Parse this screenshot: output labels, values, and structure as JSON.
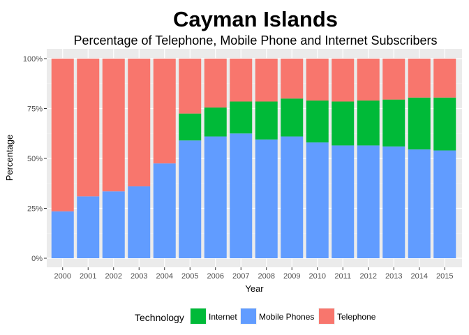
{
  "chart_data": {
    "type": "bar",
    "stacked": true,
    "title": "Cayman Islands",
    "subtitle": "Percentage of Telephone, Mobile Phone and Internet Subscribers",
    "xlabel": "Year",
    "ylabel": "Percentage",
    "ylim": [
      0,
      100
    ],
    "yticks": [
      "0%",
      "25%",
      "50%",
      "75%",
      "100%"
    ],
    "grid": true,
    "legend_position": "bottom",
    "legend_title": "Technology",
    "categories": [
      "2000",
      "2001",
      "2002",
      "2003",
      "2004",
      "2005",
      "2006",
      "2007",
      "2008",
      "2009",
      "2010",
      "2011",
      "2012",
      "2013",
      "2014",
      "2015"
    ],
    "series": [
      {
        "name": "Mobile Phones",
        "color": "#619CFF",
        "values": [
          23.5,
          31,
          33.5,
          36,
          47.5,
          59,
          61,
          62.5,
          59.5,
          61,
          58,
          56.5,
          56.5,
          56,
          54.5,
          54
        ]
      },
      {
        "name": "Internet",
        "color": "#00BA38",
        "values": [
          0,
          0,
          0,
          0,
          0,
          13.5,
          14.5,
          16,
          19,
          19,
          21,
          22,
          22.5,
          23.5,
          26,
          26.5
        ]
      },
      {
        "name": "Telephone",
        "color": "#F8766D",
        "values": [
          76.5,
          69,
          66.5,
          64,
          52.5,
          27.5,
          24.5,
          21.5,
          21.5,
          20,
          21,
          21.5,
          21,
          20.5,
          19.5,
          19.5
        ]
      }
    ],
    "legend_order": [
      "Internet",
      "Mobile Phones",
      "Telephone"
    ]
  }
}
